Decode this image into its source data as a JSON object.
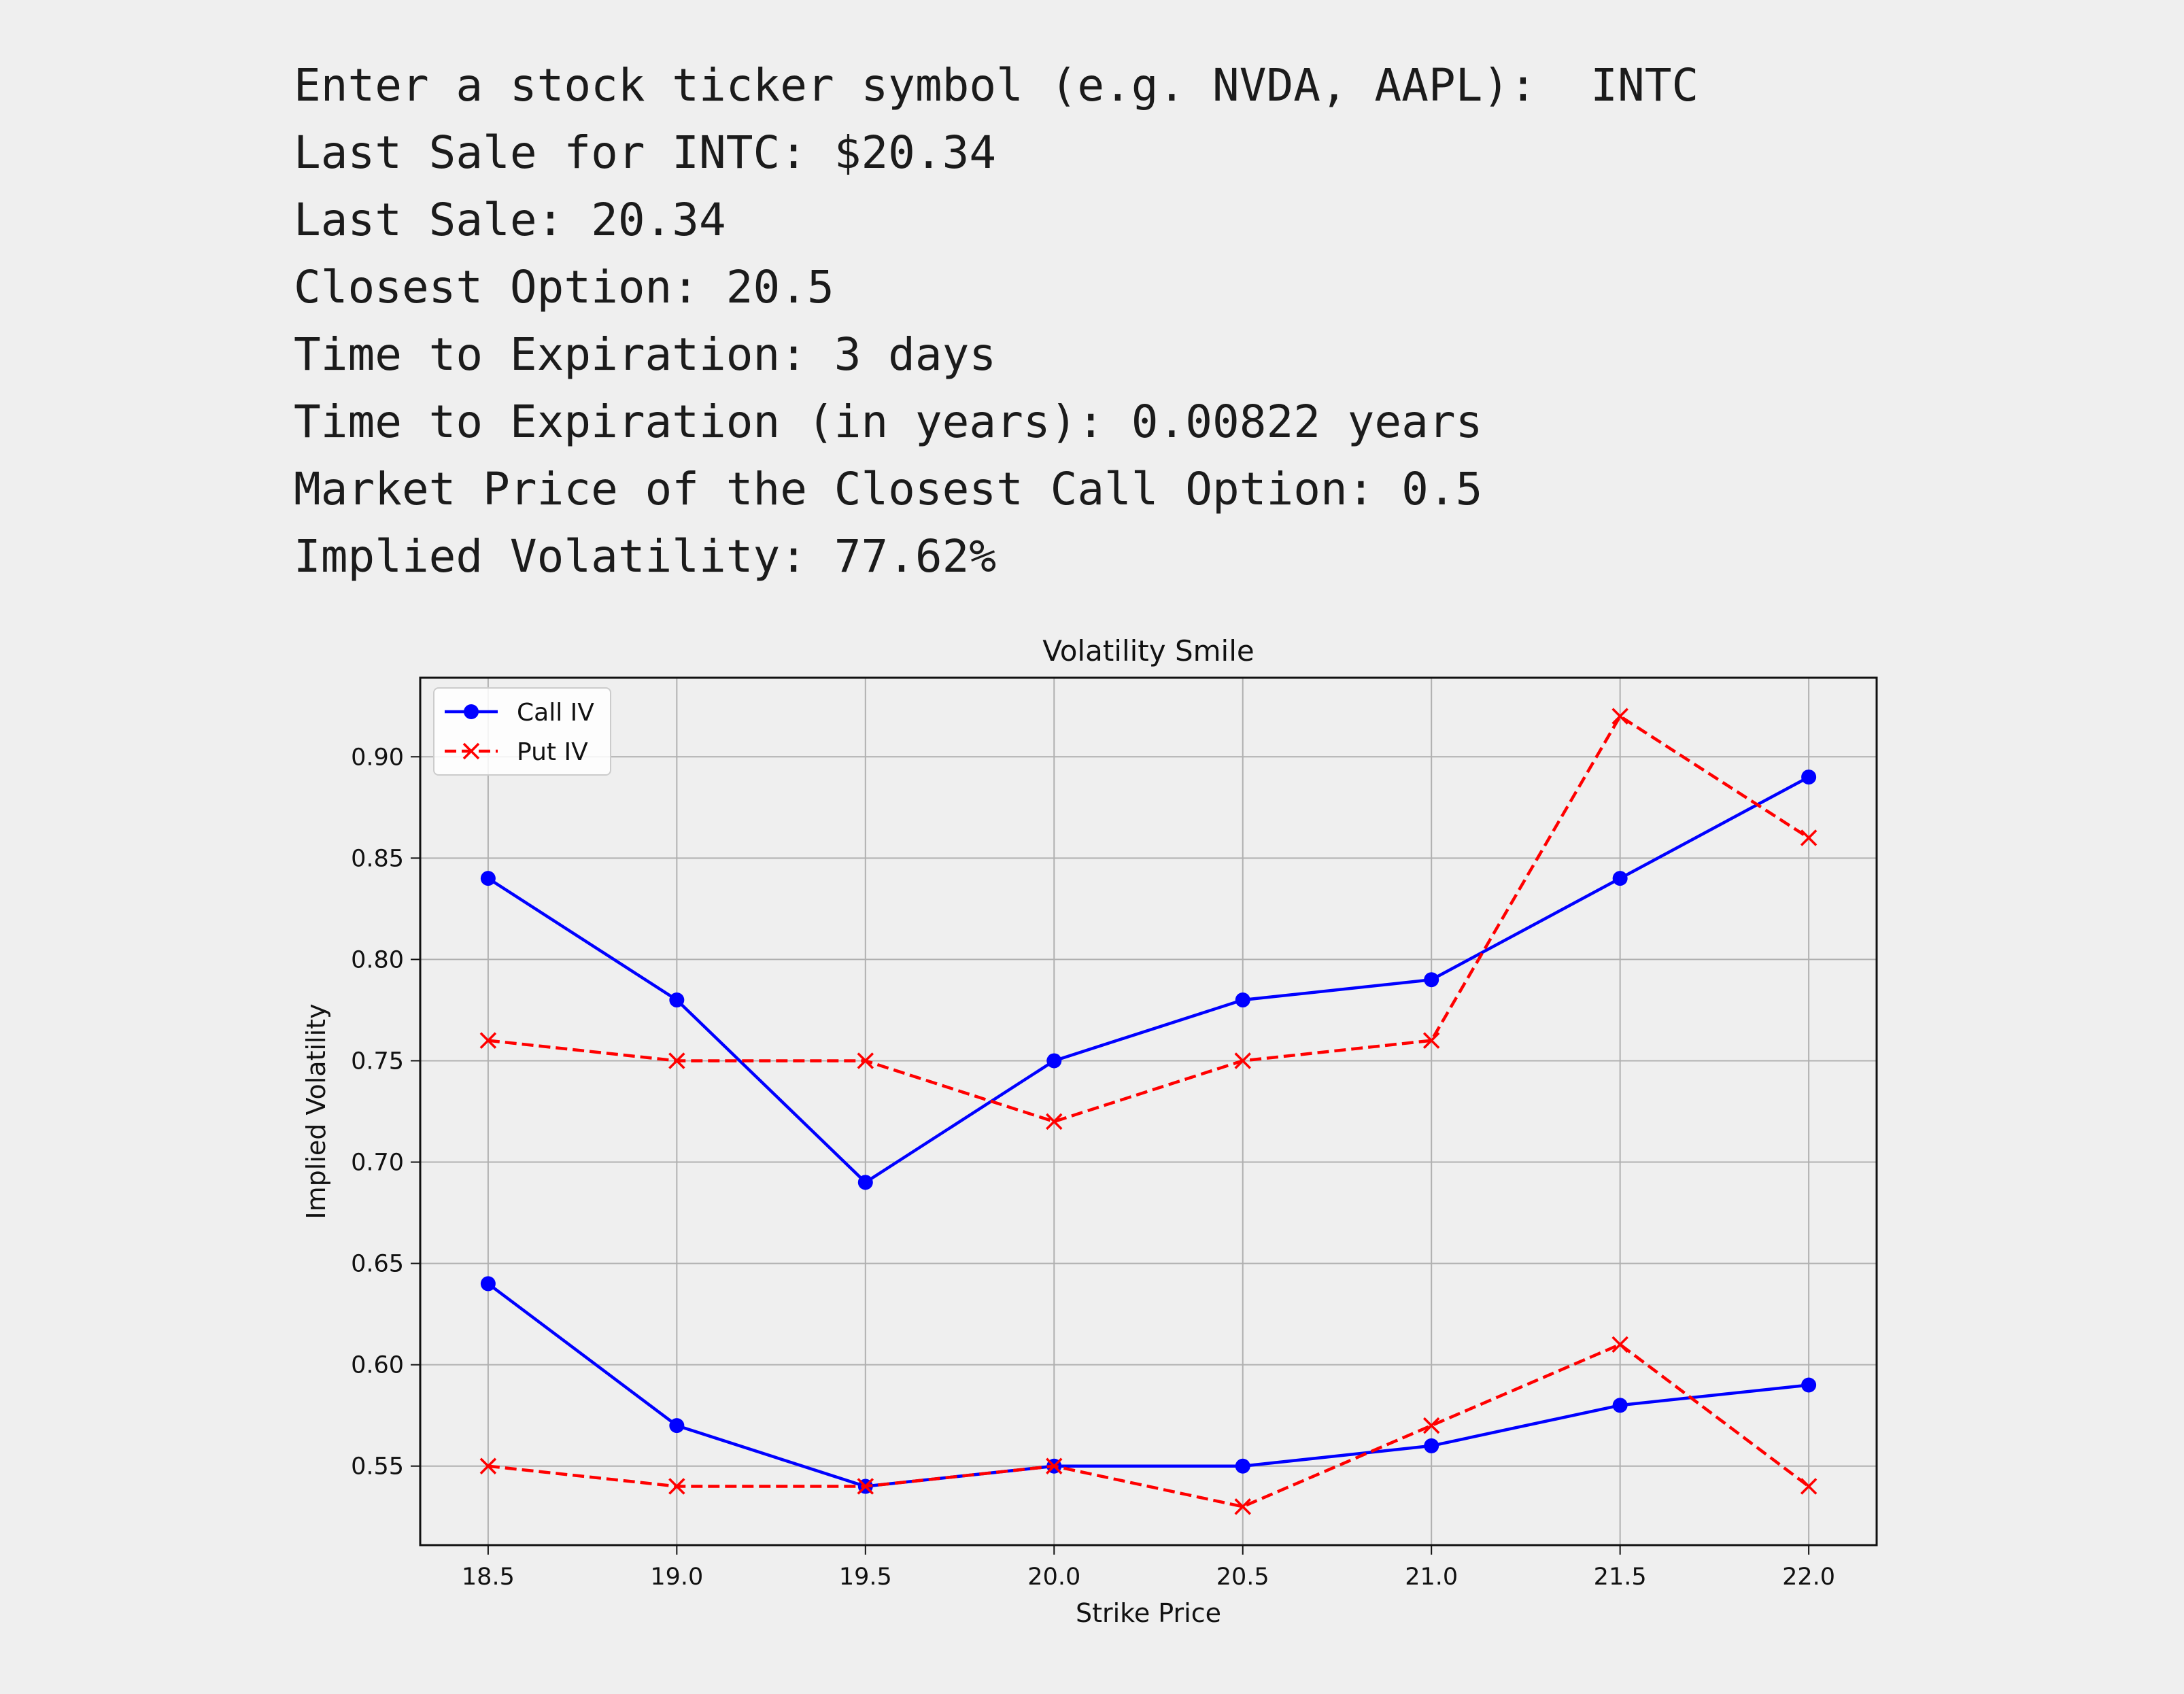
{
  "console": {
    "lines": [
      "Enter a stock ticker symbol (e.g. NVDA, AAPL):  INTC",
      "Last Sale for INTC: $20.34",
      "Last Sale: 20.34",
      "Closest Option: 20.5",
      "Time to Expiration: 3 days",
      "Time to Expiration (in years): 0.00822 years",
      "Market Price of the Closest Call Option: 0.5",
      "Implied Volatility: 77.62%"
    ]
  },
  "chart_data": {
    "type": "line",
    "title": "Volatility Smile",
    "xlabel": "Strike Price",
    "ylabel": "Implied Volatility",
    "xlim": [
      18.32,
      22.18
    ],
    "ylim": [
      0.511,
      0.939
    ],
    "xticks": [
      "18.5",
      "19.0",
      "19.5",
      "20.0",
      "20.5",
      "21.0",
      "21.5",
      "22.0"
    ],
    "yticks": [
      "0.55",
      "0.60",
      "0.65",
      "0.70",
      "0.75",
      "0.80",
      "0.85",
      "0.90"
    ],
    "grid": true,
    "legend_position": "top-left",
    "legend": [
      {
        "label": "Call IV",
        "color": "#0000ff",
        "marker": "circle",
        "linestyle": "solid"
      },
      {
        "label": "Put IV",
        "color": "#ff0000",
        "marker": "x",
        "linestyle": "dashed"
      }
    ],
    "series": [
      {
        "kind": "call",
        "color": "#0000ff",
        "marker": "circle",
        "dashed": false,
        "x": [
          18.5,
          19.0,
          19.5,
          20.0,
          20.5,
          21.0,
          21.5,
          22.0
        ],
        "y": [
          0.84,
          0.78,
          0.69,
          0.75,
          0.78,
          0.79,
          0.84,
          0.89
        ]
      },
      {
        "kind": "put",
        "color": "#ff0000",
        "marker": "x",
        "dashed": true,
        "x": [
          18.5,
          19.0,
          19.5,
          20.0,
          20.5,
          21.0,
          21.5,
          22.0
        ],
        "y": [
          0.76,
          0.75,
          0.75,
          0.72,
          0.75,
          0.76,
          0.92,
          0.86
        ]
      },
      {
        "kind": "call",
        "color": "#0000ff",
        "marker": "circle",
        "dashed": false,
        "x": [
          18.5,
          19.0,
          19.5,
          20.0,
          20.5,
          21.0,
          21.5,
          22.0
        ],
        "y": [
          0.64,
          0.57,
          0.54,
          0.55,
          0.55,
          0.56,
          0.58,
          0.59
        ]
      },
      {
        "kind": "put",
        "color": "#ff0000",
        "marker": "x",
        "dashed": true,
        "x": [
          18.5,
          19.0,
          19.5,
          20.0,
          20.5,
          21.0,
          21.5,
          22.0
        ],
        "y": [
          0.55,
          0.54,
          0.54,
          0.55,
          0.53,
          0.57,
          0.61,
          0.54
        ]
      }
    ]
  }
}
